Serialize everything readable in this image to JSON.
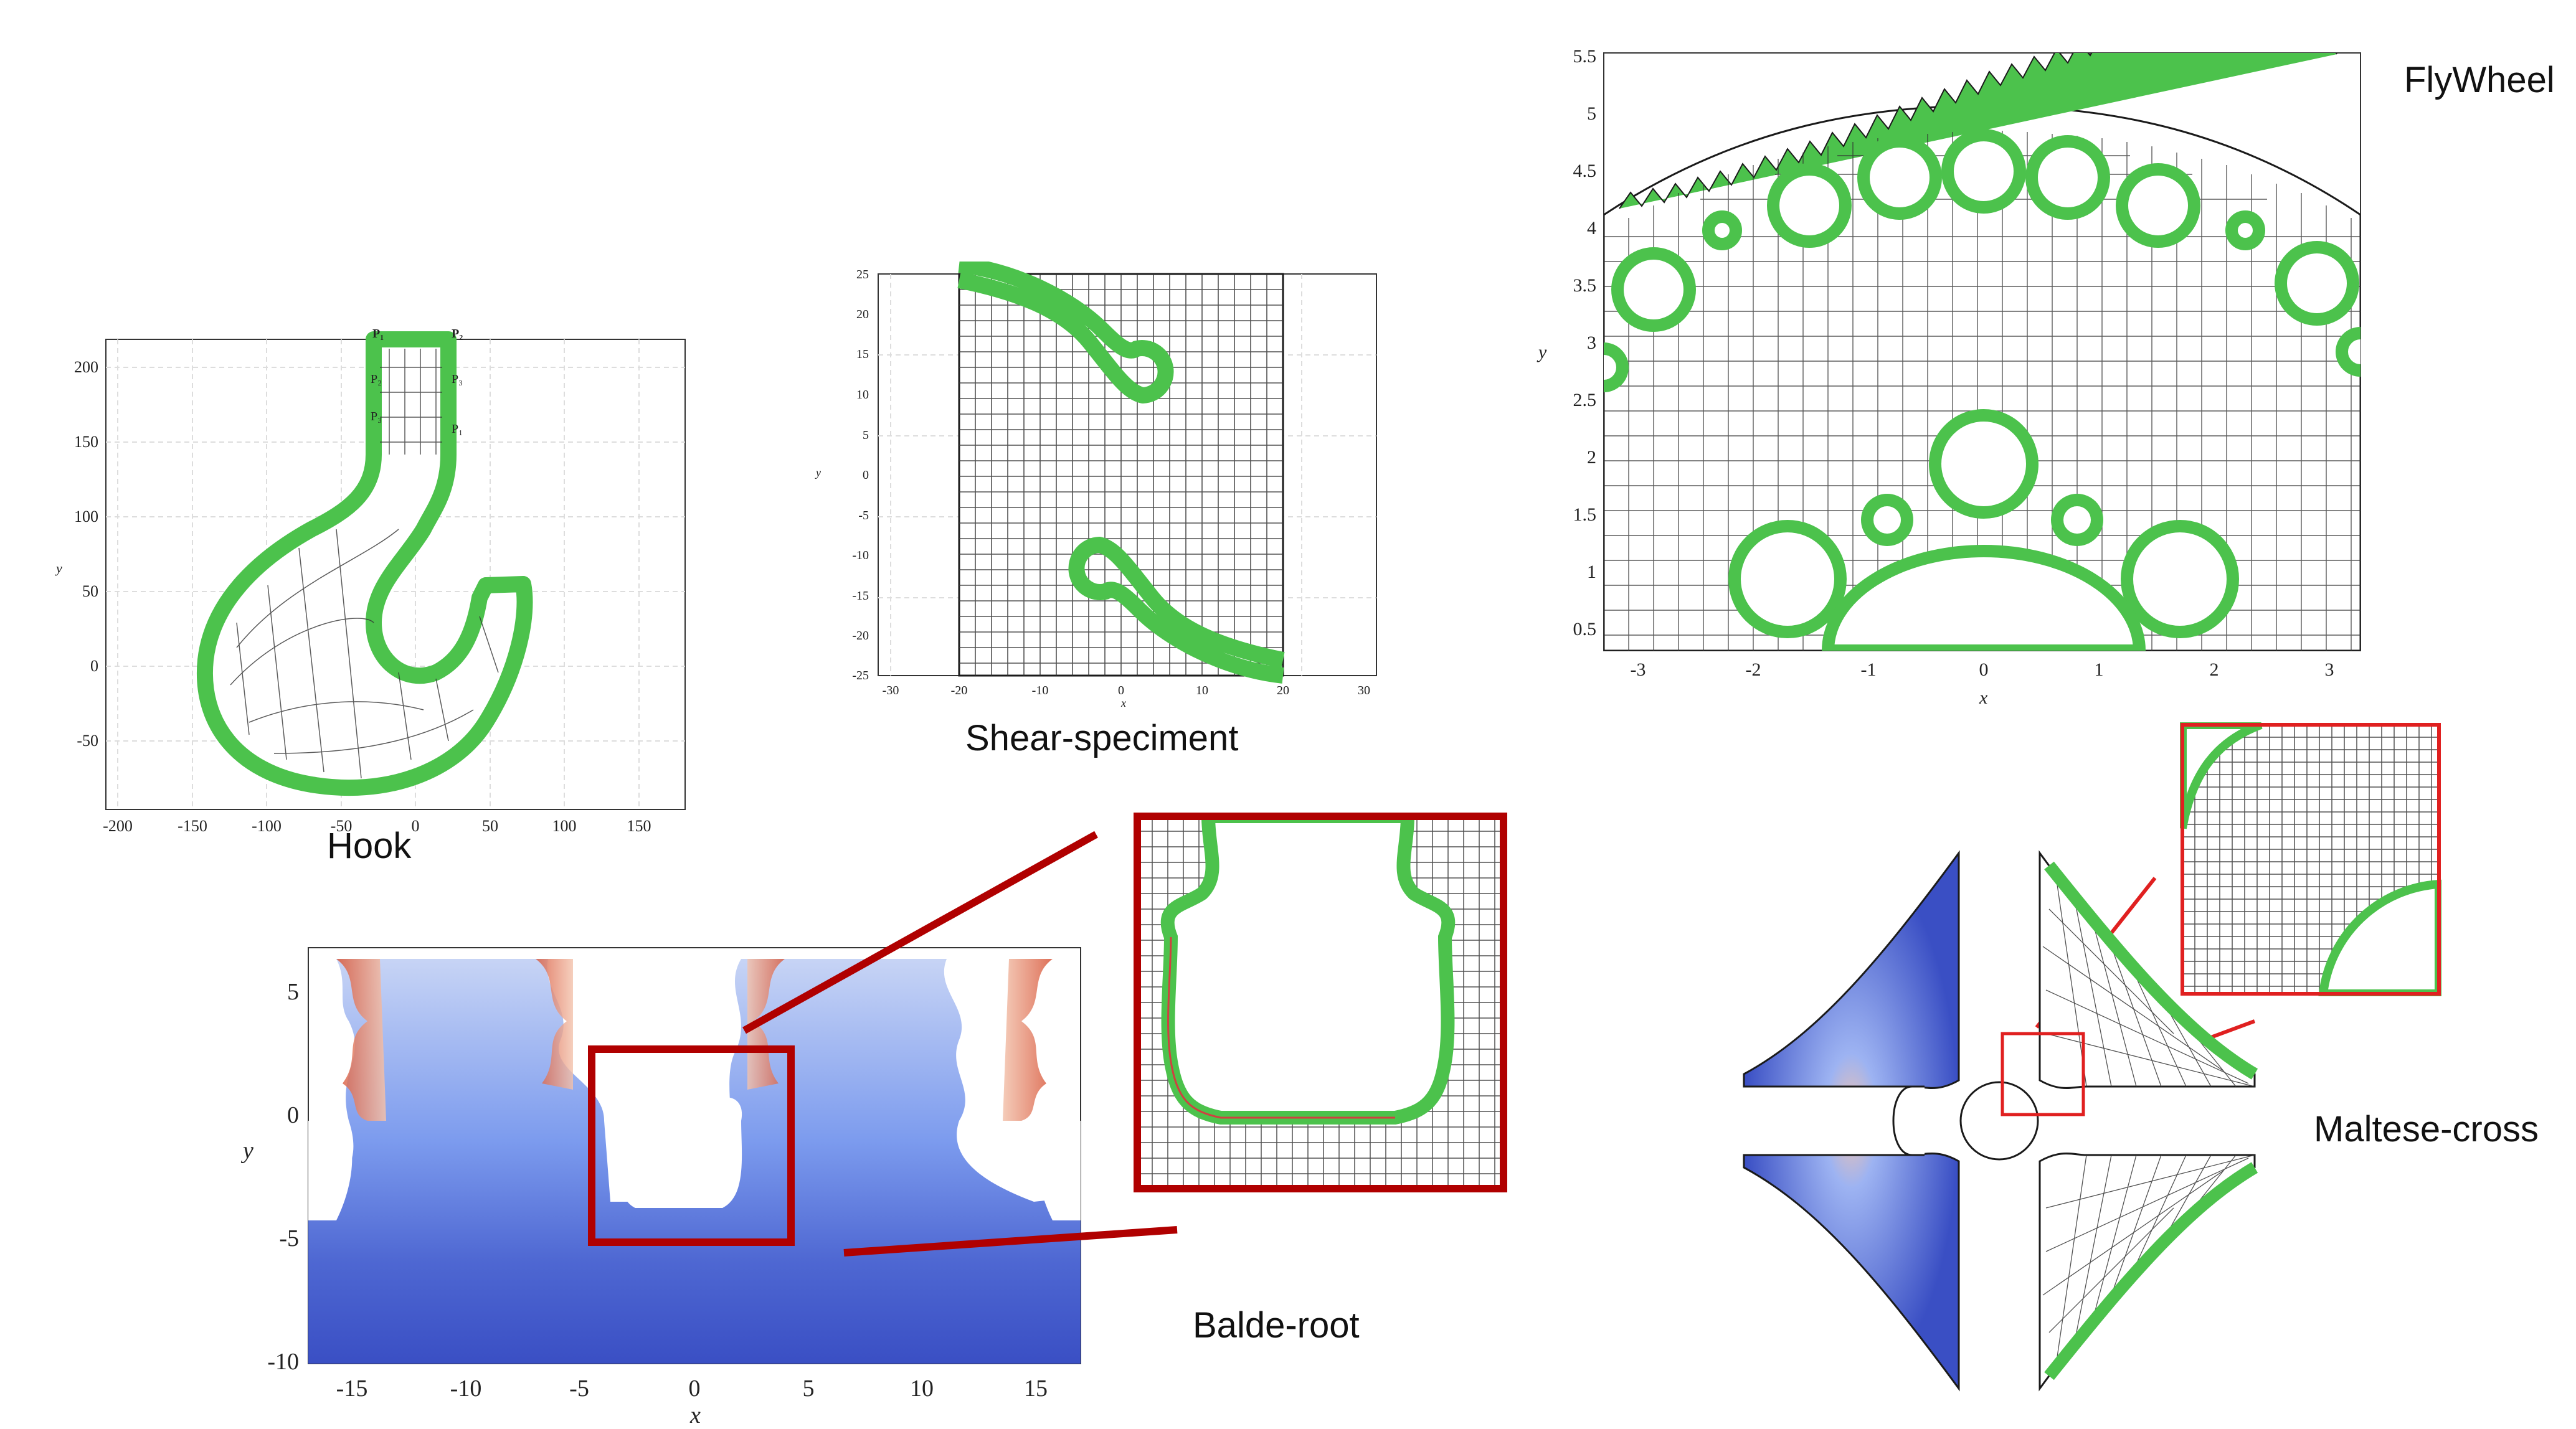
{
  "captions": {
    "hook": "Hook",
    "shear": "Shear-speciment",
    "flywheel": "FlyWheel",
    "blade": "Balde-root",
    "maltese": "Maltese-cross"
  },
  "hook_plot": {
    "xticks": [
      "-200",
      "-150",
      "-100",
      "-50",
      "0",
      "50",
      "100",
      "150"
    ],
    "yticks": [
      "200",
      "150",
      "100",
      "50",
      "0",
      "-50"
    ],
    "ylabel": "y",
    "point_labels": [
      "P₁",
      "P₂",
      "P₃",
      "P₁",
      "P₂",
      "P₃"
    ]
  },
  "shear_plot": {
    "xticks": [
      "-30",
      "-20",
      "-10",
      "0",
      "10",
      "20",
      "30"
    ],
    "yticks": [
      "25",
      "20",
      "15",
      "10",
      "5",
      "0",
      "-5",
      "-10",
      "-15",
      "-20",
      "-25"
    ],
    "xlabel": "x",
    "ylabel": "y"
  },
  "flywheel_plot": {
    "xticks": [
      "-3",
      "-2",
      "-1",
      "0",
      "1",
      "2",
      "3"
    ],
    "yticks": [
      "5.5",
      "5",
      "4.5",
      "4",
      "3.5",
      "3",
      "2.5",
      "2",
      "1.5",
      "1",
      "0.5"
    ],
    "xlabel": "x",
    "ylabel": "y"
  },
  "blade_plot": {
    "xticks": [
      "-15",
      "-10",
      "-5",
      "0",
      "5",
      "10",
      "15"
    ],
    "yticks": [
      "5",
      "0",
      "-5",
      "-10"
    ],
    "xlabel": "x",
    "ylabel": "y"
  },
  "colors": {
    "mesh": "#1a1a1a",
    "boundary_layer": "#4cc24c",
    "zoom_box": "#b00000",
    "maltese_zoom": "#e02020",
    "stress_low": "#3a4fc4",
    "stress_high": "#d8583c"
  }
}
